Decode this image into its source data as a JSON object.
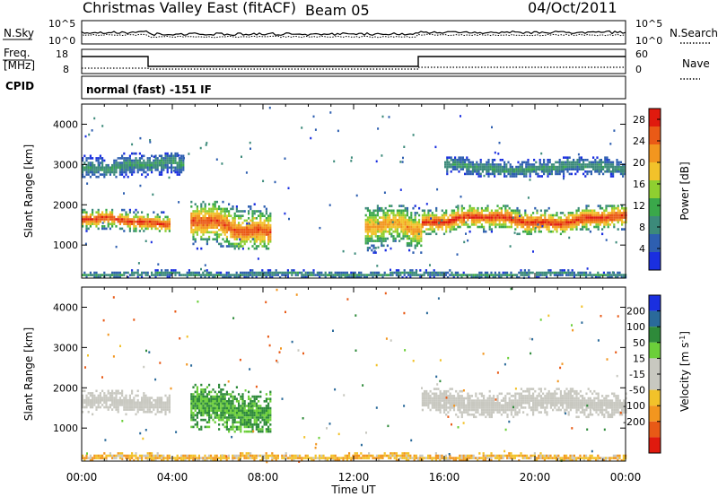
{
  "header": {
    "station": "Christmas Valley East (fitACF)",
    "beam": "Beam 05",
    "date": "04/Oct/2011"
  },
  "noise_panel": {
    "left_label": "N.Sky",
    "left_ticks": [
      "10^5",
      "10^0"
    ],
    "right_label": "N.Search",
    "right_ticks": [
      "10^5",
      "10^0"
    ]
  },
  "freq_panel": {
    "left_label_1": "Freq.",
    "left_label_2": "[MHz]",
    "left_ticks": [
      "18",
      "8"
    ],
    "right_label": "Nave",
    "right_ticks": [
      "60",
      "0"
    ]
  },
  "cpid": {
    "label": "CPID",
    "text": "normal (fast) -151 IF"
  },
  "colors": {
    "power_scale": [
      "#1a2fe0",
      "#2e5fb0",
      "#3c8a7a",
      "#3aa84a",
      "#8fcf30",
      "#f2c22a",
      "#f2961f",
      "#ea5a16",
      "#e01a0e"
    ],
    "velocity_scale": [
      "#1a2fe0",
      "#2a6a9a",
      "#2e8a3a",
      "#6ccf3a",
      "#c8c8c0",
      "#c8c8c0",
      "#f2c22a",
      "#f2961f",
      "#e85a16",
      "#e01a0e"
    ]
  },
  "chart_data": [
    {
      "type": "heatmap",
      "title": "Power",
      "xlabel": "Time UT",
      "ylabel": "Slant Range [km]",
      "x_ticks": [
        "00:00",
        "04:00",
        "08:00",
        "12:00",
        "16:00",
        "20:00",
        "00:00"
      ],
      "xlim_hours": [
        0,
        24
      ],
      "y_ticks": [
        1000,
        2000,
        3000,
        4000
      ],
      "ylim_km": [
        180,
        4500
      ],
      "colorbar_label": "Power [dB]",
      "colorbar_ticks": [
        4,
        8,
        12,
        16,
        20,
        24,
        28
      ],
      "clim_db": [
        0,
        30
      ],
      "features": [
        {
          "desc": "main scatter band",
          "start_h": 0.0,
          "end_h": 3.9,
          "range_km": [
            1350,
            1900
          ],
          "peak_db": 28
        },
        {
          "desc": "arc band",
          "start_h": 4.8,
          "end_h": 8.3,
          "range_km": [
            900,
            2100
          ],
          "peak_db": 26
        },
        {
          "desc": "upper band",
          "start_h": 0.0,
          "end_h": 4.5,
          "range_km": [
            2700,
            3300
          ],
          "peak_db": 10
        },
        {
          "desc": "descending band",
          "start_h": 12.5,
          "end_h": 15.0,
          "range_km": [
            800,
            2000
          ],
          "peak_db": 22
        },
        {
          "desc": "main scatter band",
          "start_h": 15.0,
          "end_h": 24.0,
          "range_km": [
            1300,
            2000
          ],
          "peak_db": 28
        },
        {
          "desc": "upper band",
          "start_h": 16.0,
          "end_h": 24.0,
          "range_km": [
            2700,
            3200
          ],
          "peak_db": 10
        },
        {
          "desc": "near-range scatter",
          "start_h": 0.0,
          "end_h": 24.0,
          "range_km": [
            200,
            400
          ],
          "peak_db": 10
        }
      ]
    },
    {
      "type": "heatmap",
      "title": "Velocity",
      "xlabel": "Time UT",
      "ylabel": "Slant Range [km]",
      "x_ticks": [
        "00:00",
        "04:00",
        "08:00",
        "12:00",
        "16:00",
        "20:00",
        "00:00"
      ],
      "xlim_hours": [
        0,
        24
      ],
      "y_ticks": [
        1000,
        2000,
        3000,
        4000
      ],
      "ylim_km": [
        180,
        4500
      ],
      "colorbar_label": "Velocity [m s^-1]",
      "colorbar_ticks": [
        200,
        100,
        50,
        15,
        -15,
        -50,
        -100,
        -200
      ],
      "clim_ms": [
        -250,
        250
      ],
      "features": [
        {
          "desc": "ground scatter band",
          "start_h": 0.0,
          "end_h": 3.9,
          "range_km": [
            1350,
            1950
          ],
          "velocity_ms": 0
        },
        {
          "desc": "positive flow arc",
          "start_h": 4.8,
          "end_h": 8.3,
          "range_km": [
            900,
            2100
          ],
          "velocity_ms": 60
        },
        {
          "desc": "ground scatter band",
          "start_h": 15.0,
          "end_h": 24.0,
          "range_km": [
            1300,
            2000
          ],
          "velocity_ms": 0
        },
        {
          "desc": "near-range scatter",
          "start_h": 0.0,
          "end_h": 24.0,
          "range_km": [
            200,
            400
          ],
          "velocity_ms": -40
        }
      ]
    }
  ]
}
